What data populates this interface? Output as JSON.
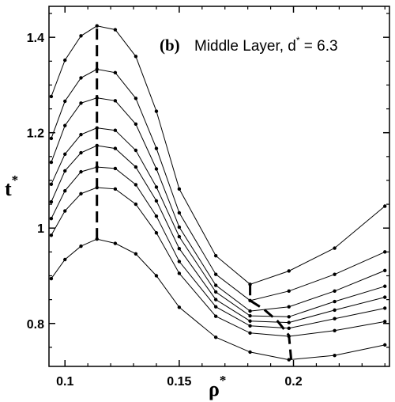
{
  "chart_data": {
    "type": "line",
    "panel_label": "(b)",
    "annotation": {
      "text": "Middle Layer, d",
      "superscript": "*",
      "suffix": " = 6.3"
    },
    "xlabel": "ρ",
    "xlabel_sup": "*",
    "ylabel": "t",
    "ylabel_sup": "*",
    "xlim": [
      0.093,
      0.242
    ],
    "ylim": [
      0.71,
      1.465
    ],
    "xticks": [
      0.1,
      0.15,
      0.2
    ],
    "xtick_labels": [
      "0.1",
      "0.15",
      "0.2"
    ],
    "yticks": [
      0.8,
      1.0,
      1.2,
      1.4
    ],
    "ytick_labels": [
      "0.8",
      "1",
      "1.2",
      "1.4"
    ],
    "grid": false,
    "series": [
      {
        "x": [
          0.094,
          0.1,
          0.107,
          0.114,
          0.122,
          0.131,
          0.14,
          0.15,
          0.166,
          0.181,
          0.198,
          0.218,
          0.24
        ],
        "values": [
          1.276,
          1.352,
          1.403,
          1.424,
          1.416,
          1.36,
          1.245,
          1.082,
          0.942,
          0.882,
          0.91,
          0.958,
          1.046
        ]
      },
      {
        "x": [
          0.094,
          0.1,
          0.107,
          0.114,
          0.122,
          0.131,
          0.14,
          0.15,
          0.166,
          0.181,
          0.198,
          0.218,
          0.24
        ],
        "values": [
          1.188,
          1.266,
          1.315,
          1.333,
          1.326,
          1.272,
          1.167,
          1.032,
          0.903,
          0.848,
          0.868,
          0.903,
          0.95
        ]
      },
      {
        "x": [
          0.094,
          0.1,
          0.107,
          0.114,
          0.122,
          0.131,
          0.14,
          0.15,
          0.166,
          0.181,
          0.198,
          0.218,
          0.24
        ],
        "values": [
          1.138,
          1.215,
          1.262,
          1.273,
          1.267,
          1.218,
          1.124,
          1.002,
          0.88,
          0.826,
          0.835,
          0.868,
          0.911
        ]
      },
      {
        "x": [
          0.094,
          0.1,
          0.107,
          0.114,
          0.122,
          0.131,
          0.14,
          0.15,
          0.166,
          0.181,
          0.198,
          0.218,
          0.24
        ],
        "values": [
          1.092,
          1.155,
          1.196,
          1.21,
          1.205,
          1.163,
          1.086,
          0.982,
          0.866,
          0.816,
          0.814,
          0.846,
          0.878
        ]
      },
      {
        "x": [
          0.094,
          0.1,
          0.107,
          0.114,
          0.122,
          0.131,
          0.14,
          0.15,
          0.166,
          0.181,
          0.198,
          0.218,
          0.24
        ],
        "values": [
          1.055,
          1.12,
          1.158,
          1.173,
          1.167,
          1.128,
          1.057,
          0.957,
          0.85,
          0.805,
          0.802,
          0.828,
          0.855
        ]
      },
      {
        "x": [
          0.094,
          0.1,
          0.107,
          0.114,
          0.122,
          0.131,
          0.14,
          0.15,
          0.166,
          0.181,
          0.198,
          0.218,
          0.24
        ],
        "values": [
          1.02,
          1.078,
          1.118,
          1.128,
          1.125,
          1.091,
          1.025,
          0.93,
          0.835,
          0.795,
          0.79,
          0.81,
          0.832
        ]
      },
      {
        "x": [
          0.094,
          0.1,
          0.107,
          0.114,
          0.122,
          0.131,
          0.14,
          0.15,
          0.166,
          0.181,
          0.198,
          0.218,
          0.24
        ],
        "values": [
          0.985,
          1.036,
          1.072,
          1.085,
          1.082,
          1.05,
          0.99,
          0.905,
          0.815,
          0.78,
          0.773,
          0.785,
          0.804
        ]
      },
      {
        "x": [
          0.094,
          0.1,
          0.107,
          0.114,
          0.122,
          0.131,
          0.14,
          0.15,
          0.166,
          0.181,
          0.198,
          0.218,
          0.24
        ],
        "values": [
          0.894,
          0.934,
          0.962,
          0.977,
          0.968,
          0.946,
          0.9,
          0.834,
          0.771,
          0.74,
          0.724,
          0.733,
          0.755
        ]
      }
    ],
    "dashed_lines": [
      {
        "x": [
          0.114,
          0.114
        ],
        "values": [
          0.977,
          1.424
        ]
      },
      {
        "x": [
          0.181,
          0.181,
          0.187,
          0.193,
          0.198,
          0.199
        ],
        "values": [
          0.882,
          0.848,
          0.83,
          0.805,
          0.775,
          0.724
        ]
      }
    ]
  }
}
